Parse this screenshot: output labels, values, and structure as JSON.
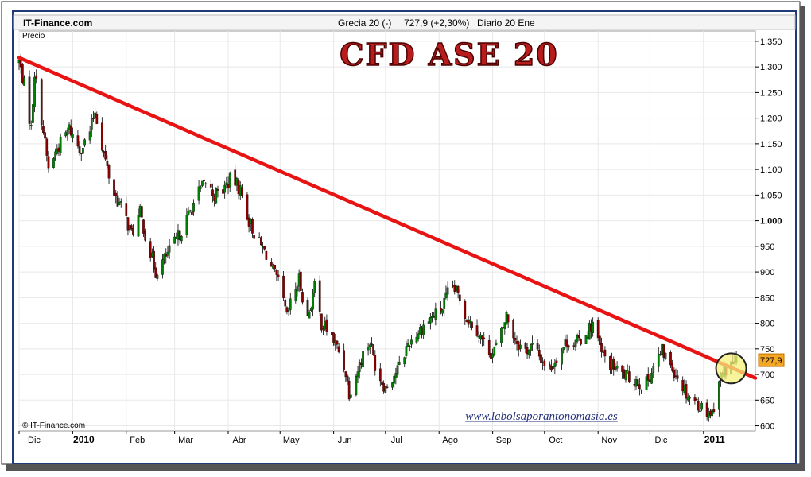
{
  "header": {
    "site": "IT-Finance.com",
    "instrument": "Grecia 20 (-)",
    "quote": "727,9 (+2,30%)",
    "period": "Diario  20 Ene"
  },
  "chart_data": {
    "type": "candlestick",
    "title": "CFD ASE 20",
    "series_label": "Precio",
    "copyright": "© IT-Finance.com",
    "watermark": "www.labolsaporantonomasia.es",
    "last_price_label": "727,9",
    "last_price": 727.9,
    "ylim": [
      590,
      1370
    ],
    "y_ticks": [
      {
        "value": 1350,
        "label": "1.350",
        "bold": false
      },
      {
        "value": 1300,
        "label": "1.300",
        "bold": false
      },
      {
        "value": 1250,
        "label": "1.250",
        "bold": false
      },
      {
        "value": 1200,
        "label": "1.200",
        "bold": false
      },
      {
        "value": 1150,
        "label": "1.150",
        "bold": false
      },
      {
        "value": 1100,
        "label": "1.100",
        "bold": false
      },
      {
        "value": 1050,
        "label": "1.050",
        "bold": false
      },
      {
        "value": 1000,
        "label": "1.000",
        "bold": true
      },
      {
        "value": 950,
        "label": "950",
        "bold": false
      },
      {
        "value": 900,
        "label": "900",
        "bold": false
      },
      {
        "value": 850,
        "label": "850",
        "bold": false
      },
      {
        "value": 800,
        "label": "800",
        "bold": false
      },
      {
        "value": 750,
        "label": "750",
        "bold": false
      },
      {
        "value": 700,
        "label": "700",
        "bold": false
      },
      {
        "value": 650,
        "label": "650",
        "bold": false
      },
      {
        "value": 600,
        "label": "600",
        "bold": false
      }
    ],
    "xlim": [
      "2009-12-01",
      "2011-01-31"
    ],
    "x_ticks": [
      {
        "date": "2009-12-01",
        "label": "Dic",
        "bold": false
      },
      {
        "date": "2010-01-01",
        "label": "2010",
        "bold": true
      },
      {
        "date": "2010-02-01",
        "label": "Feb",
        "bold": false
      },
      {
        "date": "2010-03-01",
        "label": "Mar",
        "bold": false
      },
      {
        "date": "2010-04-01",
        "label": "Abr",
        "bold": false
      },
      {
        "date": "2010-05-01",
        "label": "May",
        "bold": false
      },
      {
        "date": "2010-06-01",
        "label": "Jun",
        "bold": false
      },
      {
        "date": "2010-07-01",
        "label": "Jul",
        "bold": false
      },
      {
        "date": "2010-08-01",
        "label": "Ago",
        "bold": false
      },
      {
        "date": "2010-09-01",
        "label": "Sep",
        "bold": false
      },
      {
        "date": "2010-10-01",
        "label": "Oct",
        "bold": false
      },
      {
        "date": "2010-11-01",
        "label": "Nov",
        "bold": false
      },
      {
        "date": "2010-12-01",
        "label": "Dic",
        "bold": false
      },
      {
        "date": "2011-01-01",
        "label": "2011",
        "bold": true
      }
    ],
    "price_path": [
      [
        "2009-12-01",
        1310
      ],
      [
        "2009-12-04",
        1265
      ],
      [
        "2009-12-08",
        1180
      ],
      [
        "2009-12-10",
        1290
      ],
      [
        "2009-12-14",
        1200
      ],
      [
        "2009-12-18",
        1100
      ],
      [
        "2009-12-23",
        1140
      ],
      [
        "2009-12-30",
        1180
      ],
      [
        "2010-01-05",
        1140
      ],
      [
        "2010-01-10",
        1160
      ],
      [
        "2010-01-14",
        1215
      ],
      [
        "2010-01-19",
        1130
      ],
      [
        "2010-01-24",
        1060
      ],
      [
        "2010-01-30",
        1020
      ],
      [
        "2010-02-04",
        975
      ],
      [
        "2010-02-09",
        1015
      ],
      [
        "2010-02-13",
        960
      ],
      [
        "2010-02-18",
        900
      ],
      [
        "2010-02-23",
        925
      ],
      [
        "2010-02-28",
        950
      ],
      [
        "2010-03-04",
        975
      ],
      [
        "2010-03-09",
        1010
      ],
      [
        "2010-03-14",
        1050
      ],
      [
        "2010-03-19",
        1075
      ],
      [
        "2010-03-24",
        1050
      ],
      [
        "2010-03-29",
        1060
      ],
      [
        "2010-04-03",
        1085
      ],
      [
        "2010-04-08",
        1060
      ],
      [
        "2010-04-13",
        1000
      ],
      [
        "2010-04-18",
        960
      ],
      [
        "2010-04-23",
        935
      ],
      [
        "2010-04-27",
        900
      ],
      [
        "2010-05-01",
        870
      ],
      [
        "2010-05-05",
        810
      ],
      [
        "2010-05-08",
        850
      ],
      [
        "2010-05-12",
        885
      ],
      [
        "2010-05-17",
        810
      ],
      [
        "2010-05-21",
        870
      ],
      [
        "2010-05-25",
        800
      ],
      [
        "2010-05-30",
        780
      ],
      [
        "2010-06-04",
        745
      ],
      [
        "2010-06-08",
        705
      ],
      [
        "2010-06-10",
        665
      ],
      [
        "2010-06-14",
        700
      ],
      [
        "2010-06-18",
        740
      ],
      [
        "2010-06-22",
        765
      ],
      [
        "2010-06-26",
        705
      ],
      [
        "2010-07-01",
        675
      ],
      [
        "2010-07-05",
        695
      ],
      [
        "2010-07-09",
        715
      ],
      [
        "2010-07-14",
        760
      ],
      [
        "2010-07-19",
        780
      ],
      [
        "2010-07-24",
        800
      ],
      [
        "2010-07-29",
        815
      ],
      [
        "2010-08-03",
        830
      ],
      [
        "2010-08-08",
        875
      ],
      [
        "2010-08-13",
        850
      ],
      [
        "2010-08-17",
        810
      ],
      [
        "2010-08-22",
        795
      ],
      [
        "2010-08-27",
        760
      ],
      [
        "2010-09-01",
        740
      ],
      [
        "2010-09-06",
        780
      ],
      [
        "2010-09-09",
        815
      ],
      [
        "2010-09-14",
        770
      ],
      [
        "2010-09-19",
        745
      ],
      [
        "2010-09-24",
        755
      ],
      [
        "2010-09-29",
        730
      ],
      [
        "2010-10-04",
        710
      ],
      [
        "2010-10-09",
        740
      ],
      [
        "2010-10-14",
        765
      ],
      [
        "2010-10-19",
        760
      ],
      [
        "2010-10-24",
        775
      ],
      [
        "2010-10-29",
        800
      ],
      [
        "2010-11-03",
        740
      ],
      [
        "2010-11-08",
        720
      ],
      [
        "2010-11-13",
        705
      ],
      [
        "2010-11-18",
        695
      ],
      [
        "2010-11-23",
        690
      ],
      [
        "2010-11-28",
        675
      ],
      [
        "2010-12-03",
        715
      ],
      [
        "2010-12-08",
        745
      ],
      [
        "2010-12-13",
        720
      ],
      [
        "2010-12-18",
        690
      ],
      [
        "2010-12-23",
        660
      ],
      [
        "2010-12-28",
        645
      ],
      [
        "2011-01-02",
        630
      ],
      [
        "2011-01-06",
        625
      ],
      [
        "2011-01-10",
        690
      ],
      [
        "2011-01-14",
        710
      ],
      [
        "2011-01-20",
        728
      ]
    ],
    "trendline": {
      "label": "",
      "color": "#e81414",
      "points": [
        [
          "2009-12-01",
          1318
        ],
        [
          "2011-01-31",
          693
        ]
      ]
    },
    "highlight": {
      "date": "2011-01-17",
      "value": 712,
      "color": "#f5f07a"
    },
    "colors": {
      "up": "#008000",
      "down": "#8b0000",
      "grid": "#e8e8e8",
      "frame": "#1e3a78"
    }
  }
}
